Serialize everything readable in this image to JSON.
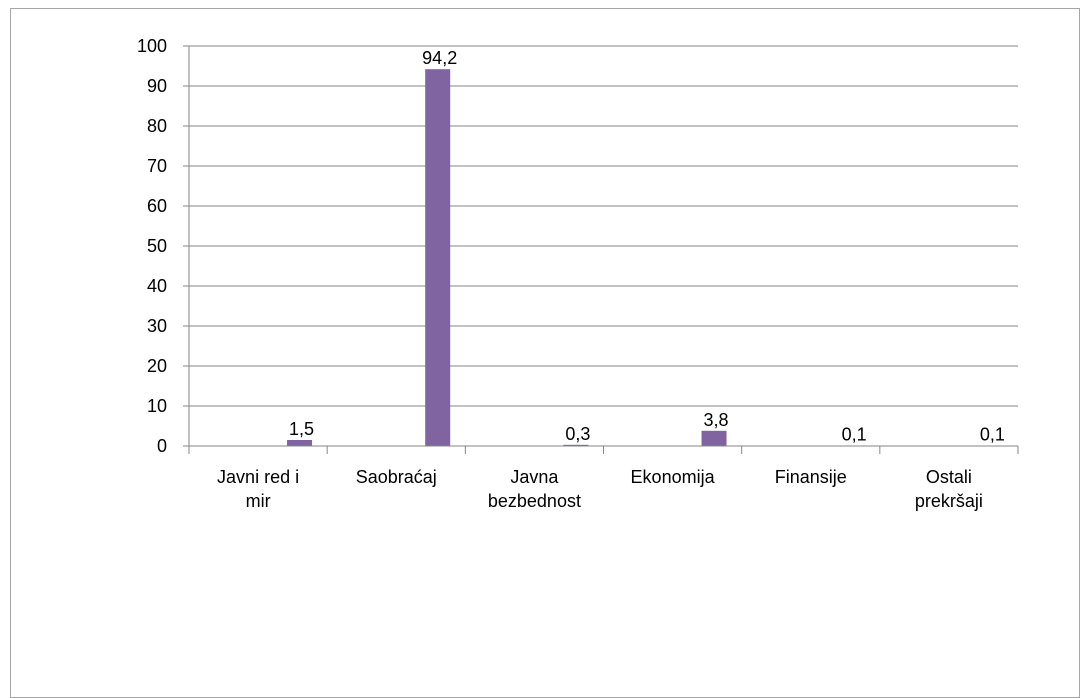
{
  "chart_data": {
    "type": "bar",
    "categories": [
      [
        "Javni red i",
        "mir"
      ],
      [
        "Saobraćaj"
      ],
      [
        "Javna",
        "bezbednost"
      ],
      [
        "Ekonomija"
      ],
      [
        "Finansije"
      ],
      [
        "Ostali",
        "prekršaji"
      ]
    ],
    "values": [
      1.5,
      94.2,
      0.3,
      3.8,
      0.1,
      0.1
    ],
    "data_labels": [
      "1,5",
      "94,2",
      "0,3",
      "3,8",
      "0,1",
      "0,1"
    ],
    "ylim": [
      0,
      100
    ],
    "yticks": [
      "0",
      "10",
      "20",
      "30",
      "40",
      "50",
      "60",
      "70",
      "80",
      "90",
      "100"
    ],
    "grid": true,
    "legend": "none",
    "bar_color": "#8064a2",
    "grid_color": "#868686"
  }
}
